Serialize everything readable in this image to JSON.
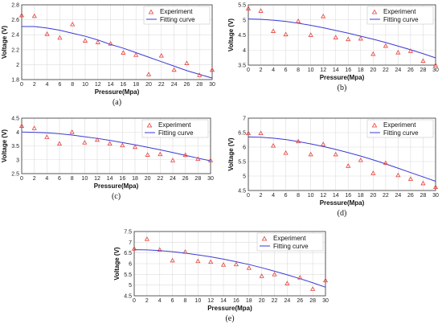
{
  "figure": {
    "legend_experiment": "Experiment",
    "legend_fit": "Fitting curve",
    "experiment_color": "#e8413c",
    "fit_color": "#3a3ad6"
  },
  "chart_data": [
    {
      "type": "scatter",
      "caption": "(a)",
      "xlabel": "Pressure(Mpa)",
      "ylabel": "Voltage (V)",
      "xlim": [
        0,
        30
      ],
      "ylim": [
        1.8,
        2.8
      ],
      "xticks": [
        "0",
        "2",
        "4",
        "6",
        "8",
        "10",
        "12",
        "14",
        "16",
        "18",
        "20",
        "22",
        "24",
        "26",
        "28",
        "30"
      ],
      "yticks": [
        "1.8",
        "2",
        "2.2",
        "2.4",
        "2.6",
        "2.8"
      ],
      "grid": true,
      "legend": "top-right",
      "series": [
        {
          "name": "Experiment",
          "kind": "scatter",
          "x": [
            0,
            2,
            4,
            6,
            8,
            10,
            12,
            14,
            16,
            18,
            20,
            22,
            24,
            26,
            28,
            30
          ],
          "y": [
            2.66,
            2.65,
            2.41,
            2.36,
            2.54,
            2.32,
            2.3,
            2.28,
            2.16,
            2.13,
            1.87,
            2.12,
            1.93,
            2.02,
            1.86,
            1.93
          ]
        },
        {
          "name": "Fitting curve",
          "kind": "line",
          "x": [
            0,
            2,
            4,
            6,
            8,
            10,
            12,
            14,
            16,
            18,
            20,
            22,
            24,
            26,
            28,
            30
          ],
          "y": [
            2.51,
            2.51,
            2.49,
            2.46,
            2.42,
            2.38,
            2.33,
            2.27,
            2.22,
            2.16,
            2.1,
            2.04,
            1.98,
            1.92,
            1.87,
            1.82
          ]
        }
      ]
    },
    {
      "type": "scatter",
      "caption": "(b)",
      "xlabel": "Pressure(Mpa)",
      "ylabel": "Voltage (V)",
      "xlim": [
        0,
        30
      ],
      "ylim": [
        3.5,
        5.5
      ],
      "xticks": [
        "0",
        "2",
        "4",
        "6",
        "8",
        "10",
        "12",
        "14",
        "16",
        "18",
        "20",
        "22",
        "24",
        "26",
        "28",
        "30"
      ],
      "yticks": [
        "3.5",
        "4",
        "4.5",
        "5",
        "5.5"
      ],
      "grid": true,
      "legend": "top-right",
      "series": [
        {
          "name": "Experiment",
          "kind": "scatter",
          "x": [
            0,
            2,
            4,
            6,
            8,
            10,
            12,
            14,
            16,
            18,
            20,
            22,
            24,
            26,
            28,
            30
          ],
          "y": [
            5.38,
            5.3,
            4.63,
            4.52,
            4.96,
            4.5,
            5.12,
            4.42,
            4.36,
            4.38,
            3.87,
            4.14,
            3.92,
            3.97,
            3.64,
            3.5
          ]
        },
        {
          "name": "Fitting curve",
          "kind": "line",
          "x": [
            0,
            2,
            4,
            6,
            8,
            10,
            12,
            14,
            16,
            18,
            20,
            22,
            24,
            26,
            28,
            30
          ],
          "y": [
            5.03,
            5.02,
            4.99,
            4.95,
            4.89,
            4.82,
            4.74,
            4.65,
            4.56,
            4.46,
            4.36,
            4.25,
            4.13,
            4.01,
            3.88,
            3.74
          ]
        }
      ]
    },
    {
      "type": "scatter",
      "caption": "(c)",
      "xlabel": "Pressure(Mpa)",
      "ylabel": "Voltage (V)",
      "xlim": [
        0,
        30
      ],
      "ylim": [
        2.5,
        4.5
      ],
      "xticks": [
        "0",
        "2",
        "4",
        "6",
        "8",
        "10",
        "12",
        "14",
        "16",
        "18",
        "20",
        "22",
        "24",
        "26",
        "28",
        "30"
      ],
      "yticks": [
        "2.5",
        "3",
        "3.5",
        "4",
        "4.5"
      ],
      "grid": true,
      "legend": "top-right",
      "series": [
        {
          "name": "Experiment",
          "kind": "scatter",
          "x": [
            0,
            2,
            4,
            6,
            8,
            10,
            12,
            14,
            16,
            18,
            20,
            22,
            24,
            26,
            28,
            30
          ],
          "y": [
            4.22,
            4.14,
            3.82,
            3.58,
            4.0,
            3.62,
            3.72,
            3.58,
            3.52,
            3.46,
            3.18,
            3.2,
            2.98,
            3.17,
            3.03,
            2.98
          ]
        },
        {
          "name": "Fitting curve",
          "kind": "line",
          "x": [
            0,
            2,
            4,
            6,
            8,
            10,
            12,
            14,
            16,
            18,
            20,
            22,
            24,
            26,
            28,
            30
          ],
          "y": [
            4.0,
            3.99,
            3.97,
            3.94,
            3.89,
            3.83,
            3.77,
            3.7,
            3.62,
            3.54,
            3.45,
            3.36,
            3.26,
            3.16,
            3.06,
            2.96
          ]
        }
      ]
    },
    {
      "type": "scatter",
      "caption": "(d)",
      "xlabel": "Pressure(Mpa)",
      "ylabel": "Voltage (V)",
      "xlim": [
        0,
        30
      ],
      "ylim": [
        4.5,
        7
      ],
      "xticks": [
        "0",
        "2",
        "4",
        "6",
        "8",
        "10",
        "12",
        "14",
        "16",
        "18",
        "20",
        "22",
        "24",
        "26",
        "28",
        "30"
      ],
      "yticks": [
        "4.5",
        "5",
        "5.5",
        "6",
        "6.5",
        "7"
      ],
      "grid": true,
      "legend": "top-right",
      "series": [
        {
          "name": "Experiment",
          "kind": "scatter",
          "x": [
            0,
            2,
            4,
            6,
            8,
            10,
            12,
            14,
            16,
            18,
            20,
            22,
            24,
            26,
            28,
            30
          ],
          "y": [
            6.48,
            6.48,
            6.05,
            5.8,
            6.2,
            5.75,
            6.1,
            5.75,
            5.35,
            5.55,
            5.1,
            5.45,
            5.03,
            4.9,
            4.75,
            4.62
          ]
        },
        {
          "name": "Fitting curve",
          "kind": "line",
          "x": [
            0,
            2,
            4,
            6,
            8,
            10,
            12,
            14,
            16,
            18,
            20,
            22,
            24,
            26,
            28,
            30
          ],
          "y": [
            6.35,
            6.34,
            6.31,
            6.26,
            6.19,
            6.11,
            6.02,
            5.92,
            5.81,
            5.69,
            5.56,
            5.42,
            5.27,
            5.12,
            4.97,
            4.82
          ]
        }
      ]
    },
    {
      "type": "scatter",
      "caption": "(e)",
      "xlabel": "Pressure(Mpa)",
      "ylabel": "Voltage (V)",
      "xlim": [
        0,
        30
      ],
      "ylim": [
        4.5,
        7.5
      ],
      "xticks": [
        "0",
        "2",
        "4",
        "6",
        "8",
        "10",
        "12",
        "14",
        "16",
        "18",
        "20",
        "22",
        "24",
        "26",
        "28",
        "30"
      ],
      "yticks": [
        "4.5",
        "5",
        "5.5",
        "6",
        "6.5",
        "7",
        "7.5"
      ],
      "grid": true,
      "legend": "top-right",
      "series": [
        {
          "name": "Experiment",
          "kind": "scatter",
          "x": [
            0,
            2,
            4,
            6,
            8,
            10,
            12,
            14,
            16,
            18,
            20,
            22,
            24,
            26,
            28,
            30
          ],
          "y": [
            6.7,
            7.15,
            6.65,
            6.15,
            6.55,
            6.12,
            6.08,
            5.95,
            5.97,
            5.8,
            5.42,
            5.5,
            5.08,
            5.35,
            4.82,
            5.22
          ]
        },
        {
          "name": "Fitting curve",
          "kind": "line",
          "x": [
            0,
            2,
            4,
            6,
            8,
            10,
            12,
            14,
            16,
            18,
            20,
            22,
            24,
            26,
            28,
            30
          ],
          "y": [
            6.65,
            6.64,
            6.61,
            6.56,
            6.49,
            6.41,
            6.32,
            6.21,
            6.09,
            5.96,
            5.81,
            5.65,
            5.48,
            5.3,
            5.11,
            4.9
          ]
        }
      ]
    }
  ]
}
